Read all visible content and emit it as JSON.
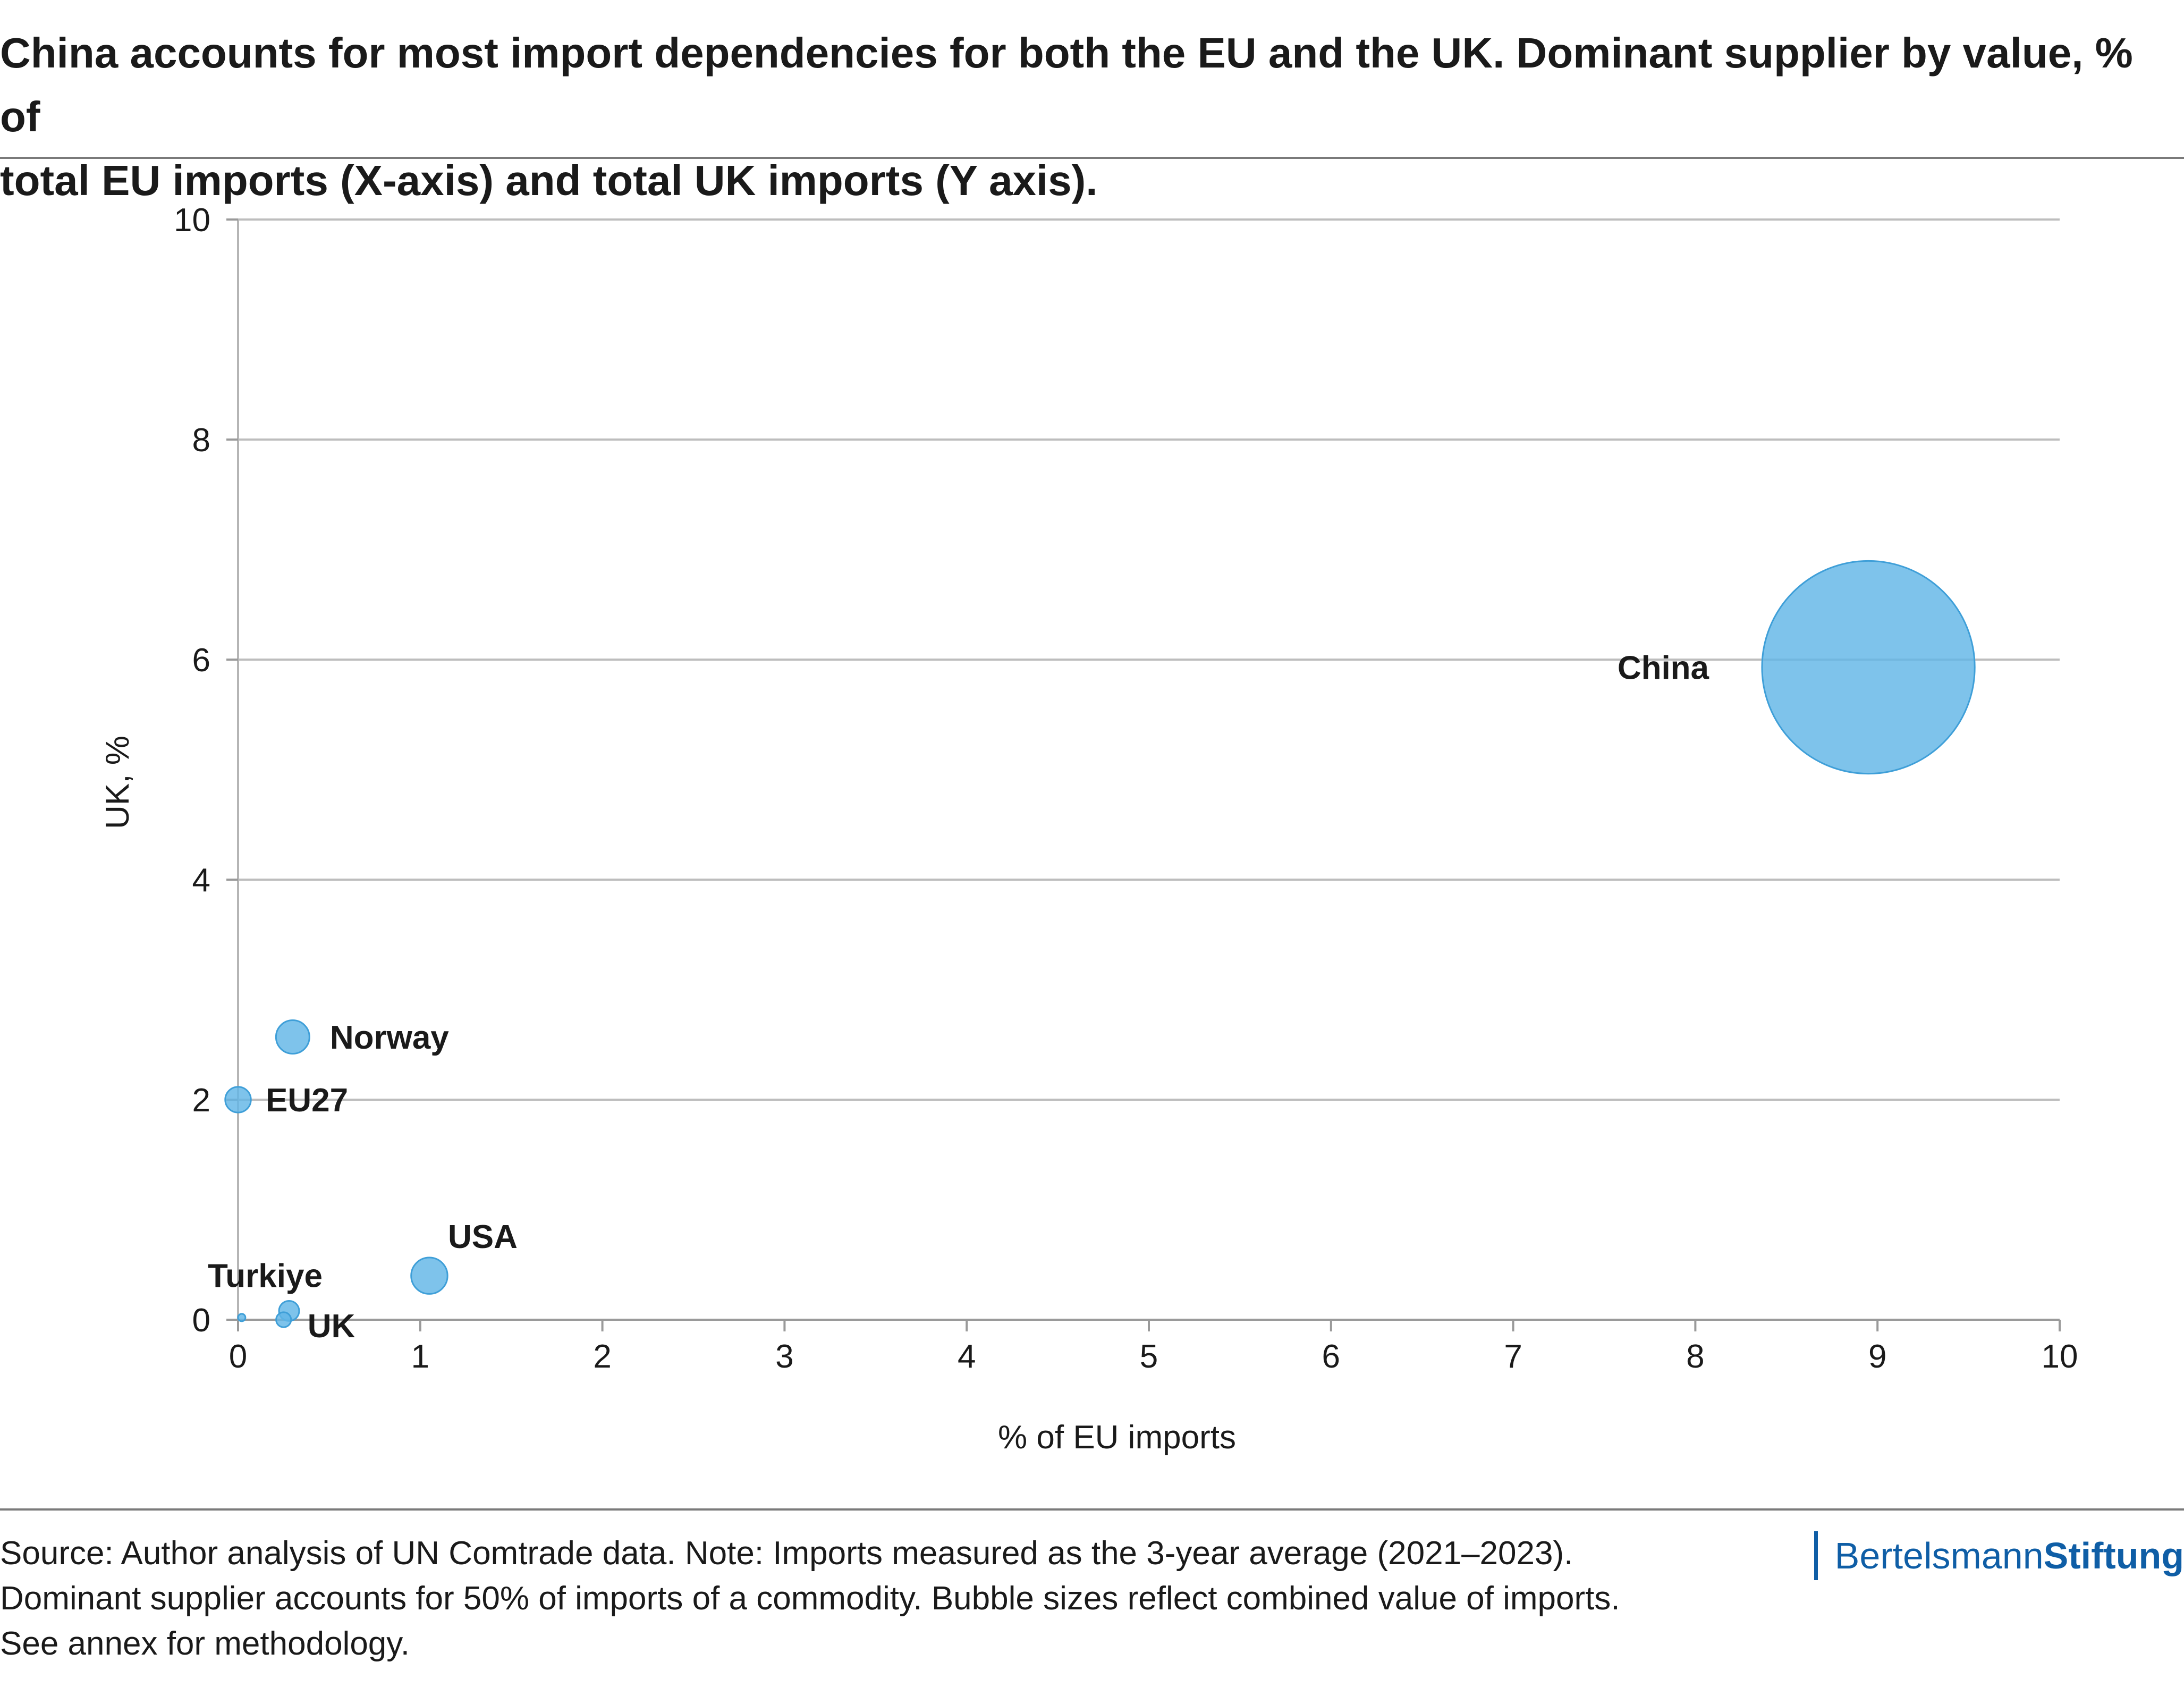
{
  "title_lines": [
    "China accounts for most import dependencies for both the EU and the UK. Dominant supplier by value, % of",
    "total EU imports (X-axis) and total UK imports (Y axis)."
  ],
  "footer_lines": [
    "Source: Author analysis of UN Comtrade data. Note: Imports measured as the 3-year average (2021–2023).",
    "Dominant supplier accounts for 50% of imports of a commodity. Bubble sizes reflect combined value of imports.",
    "See annex for methodology."
  ],
  "brand": {
    "part1": "Bertelsmann",
    "part2": "Stiftung"
  },
  "colors": {
    "bubble": "#62b6e6",
    "bubble_stroke": "#3f9fd8",
    "grid": "#bdbdbd",
    "brand": "#0f5ea6"
  },
  "chart_data": {
    "type": "scatter",
    "bubble": true,
    "title": "",
    "xlabel": "% of EU imports",
    "ylabel": "UK, %",
    "xlim": [
      0,
      10
    ],
    "ylim": [
      0,
      10
    ],
    "xticks": [
      0,
      1,
      2,
      3,
      4,
      5,
      6,
      7,
      8,
      9,
      10
    ],
    "yticks": [
      0,
      2,
      4,
      6,
      8,
      10
    ],
    "grid": "horizontal",
    "points": [
      {
        "label": "China",
        "x": 8.95,
        "y": 5.93,
        "size": 4450
      },
      {
        "label": "Norway",
        "x": 0.3,
        "y": 2.57,
        "size": 110
      },
      {
        "label": "EU27",
        "x": 0.0,
        "y": 2.0,
        "size": 65
      },
      {
        "label": "USA",
        "x": 1.05,
        "y": 0.4,
        "size": 130
      },
      {
        "label": "Turkiye",
        "x": 0.28,
        "y": 0.08,
        "size": 40
      },
      {
        "label": "UK",
        "x": 0.25,
        "y": 0.0,
        "size": 22
      },
      {
        "label": "",
        "x": 0.02,
        "y": 0.02,
        "size": 2
      }
    ]
  }
}
